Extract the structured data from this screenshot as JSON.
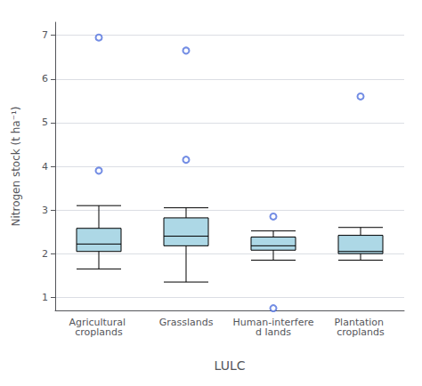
{
  "chart_data": {
    "type": "boxplot",
    "xlabel": "LULC",
    "ylabel": "Nitrogen stock (t ha⁻¹)",
    "categories": [
      "Agricultural croplands",
      "Grasslands",
      "Human-interfered lands",
      "Plantation croplands"
    ],
    "boxes": [
      {
        "q1": 2.05,
        "median": 2.22,
        "q3": 2.58,
        "whisker_low": 1.65,
        "whisker_high": 3.1,
        "outliers": [
          3.9,
          6.95
        ]
      },
      {
        "q1": 2.18,
        "median": 2.4,
        "q3": 2.82,
        "whisker_low": 1.35,
        "whisker_high": 3.05,
        "outliers": [
          4.15,
          6.65
        ]
      },
      {
        "q1": 2.08,
        "median": 2.18,
        "q3": 2.38,
        "whisker_low": 1.85,
        "whisker_high": 2.52,
        "outliers": [
          0.75,
          2.85
        ]
      },
      {
        "q1": 2.0,
        "median": 2.05,
        "q3": 2.42,
        "whisker_low": 1.85,
        "whisker_high": 2.6,
        "outliers": [
          5.6
        ]
      }
    ],
    "color": "#add8e6",
    "ylim": [
      0.7,
      7.3
    ],
    "yticks": [
      1,
      2,
      3,
      4,
      5,
      6,
      7
    ]
  }
}
